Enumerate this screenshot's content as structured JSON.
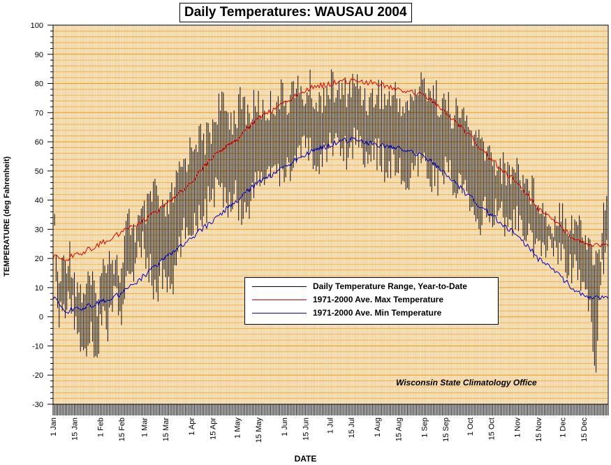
{
  "chart_data": {
    "type": "line",
    "title": "Daily Temperatures: WAUSAU 2004",
    "xlabel": "DATE",
    "ylabel": "TEMPERATURE (deg Fahrenheit)",
    "ylim": [
      -30,
      100
    ],
    "yticks": [
      -30,
      -20,
      -10,
      0,
      10,
      20,
      30,
      40,
      50,
      60,
      70,
      80,
      90,
      100
    ],
    "xlim_day_of_year": [
      1,
      366
    ],
    "x_tick_labels": [
      {
        "label": "1 Jan",
        "day": 1
      },
      {
        "label": "15 Jan",
        "day": 15
      },
      {
        "label": "1 Feb",
        "day": 32
      },
      {
        "label": "15 Feb",
        "day": 46
      },
      {
        "label": "1 Mar",
        "day": 61
      },
      {
        "label": "15 Mar",
        "day": 75
      },
      {
        "label": "1 Apr",
        "day": 92
      },
      {
        "label": "15 Apr",
        "day": 106
      },
      {
        "label": "1 May",
        "day": 122
      },
      {
        "label": "15 May",
        "day": 136
      },
      {
        "label": "1 Jun",
        "day": 153
      },
      {
        "label": "15 Jun",
        "day": 167
      },
      {
        "label": "1 Jul",
        "day": 183
      },
      {
        "label": "15 Jul",
        "day": 197
      },
      {
        "label": "1 Aug",
        "day": 214
      },
      {
        "label": "15 Aug",
        "day": 228
      },
      {
        "label": "1 Sep",
        "day": 245
      },
      {
        "label": "15 Sep",
        "day": 259
      },
      {
        "label": "1 Oct",
        "day": 275
      },
      {
        "label": "15 Oct",
        "day": 289
      },
      {
        "label": "1 Nov",
        "day": 306
      },
      {
        "label": "15 Nov",
        "day": 320
      },
      {
        "label": "1 Dec",
        "day": 336
      },
      {
        "label": "15 Dec",
        "day": 350
      }
    ],
    "grid": true,
    "legend_position": "center-right",
    "series": [
      {
        "name": "Daily Temperature Range, Year-to-Date",
        "kind": "range",
        "color": "#000000",
        "points": [
          {
            "day": 1,
            "low": 14,
            "high": 33
          },
          {
            "day": 2,
            "low": 22,
            "high": 35
          },
          {
            "day": 3,
            "low": 5,
            "high": 28
          },
          {
            "day": 4,
            "low": -5,
            "high": 20
          },
          {
            "day": 5,
            "low": -8,
            "high": 17
          },
          {
            "day": 8,
            "low": -2,
            "high": 25
          },
          {
            "day": 12,
            "low": 0,
            "high": 28
          },
          {
            "day": 16,
            "low": -8,
            "high": 18
          },
          {
            "day": 20,
            "low": -17,
            "high": 14
          },
          {
            "day": 25,
            "low": -12,
            "high": 18
          },
          {
            "day": 30,
            "low": -18,
            "high": 12
          },
          {
            "day": 33,
            "low": -5,
            "high": 20
          },
          {
            "day": 37,
            "low": -10,
            "high": 29
          },
          {
            "day": 42,
            "low": 5,
            "high": 25
          },
          {
            "day": 46,
            "low": -12,
            "high": 20
          },
          {
            "day": 50,
            "low": 10,
            "high": 39
          },
          {
            "day": 55,
            "low": 12,
            "high": 36
          },
          {
            "day": 60,
            "low": 18,
            "high": 40
          },
          {
            "day": 65,
            "low": 10,
            "high": 44
          },
          {
            "day": 68,
            "low": 2,
            "high": 52
          },
          {
            "day": 72,
            "low": 8,
            "high": 40
          },
          {
            "day": 76,
            "low": 5,
            "high": 42
          },
          {
            "day": 80,
            "low": 4,
            "high": 48
          },
          {
            "day": 85,
            "low": 20,
            "high": 56
          },
          {
            "day": 90,
            "low": 25,
            "high": 62
          },
          {
            "day": 95,
            "low": 28,
            "high": 68
          },
          {
            "day": 100,
            "low": 30,
            "high": 66
          },
          {
            "day": 105,
            "low": 35,
            "high": 70
          },
          {
            "day": 110,
            "low": 38,
            "high": 79
          },
          {
            "day": 115,
            "low": 32,
            "high": 76
          },
          {
            "day": 120,
            "low": 38,
            "high": 74
          },
          {
            "day": 125,
            "low": 29,
            "high": 80
          },
          {
            "day": 130,
            "low": 33,
            "high": 75
          },
          {
            "day": 135,
            "low": 40,
            "high": 80
          },
          {
            "day": 140,
            "low": 42,
            "high": 76
          },
          {
            "day": 145,
            "low": 45,
            "high": 79
          },
          {
            "day": 150,
            "low": 40,
            "high": 82
          },
          {
            "day": 155,
            "low": 45,
            "high": 80
          },
          {
            "day": 160,
            "low": 48,
            "high": 86
          },
          {
            "day": 165,
            "low": 50,
            "high": 80
          },
          {
            "day": 170,
            "low": 52,
            "high": 85
          },
          {
            "day": 175,
            "low": 44,
            "high": 78
          },
          {
            "day": 180,
            "low": 50,
            "high": 84
          },
          {
            "day": 185,
            "low": 55,
            "high": 85
          },
          {
            "day": 190,
            "low": 52,
            "high": 82
          },
          {
            "day": 195,
            "low": 50,
            "high": 84
          },
          {
            "day": 200,
            "low": 56,
            "high": 86
          },
          {
            "day": 205,
            "low": 52,
            "high": 82
          },
          {
            "day": 210,
            "low": 48,
            "high": 80
          },
          {
            "day": 215,
            "low": 50,
            "high": 84
          },
          {
            "day": 220,
            "low": 45,
            "high": 80
          },
          {
            "day": 225,
            "low": 48,
            "high": 82
          },
          {
            "day": 230,
            "low": 42,
            "high": 79
          },
          {
            "day": 235,
            "low": 39,
            "high": 78
          },
          {
            "day": 240,
            "low": 44,
            "high": 84
          },
          {
            "day": 245,
            "low": 46,
            "high": 86
          },
          {
            "day": 250,
            "low": 42,
            "high": 84
          },
          {
            "day": 255,
            "low": 40,
            "high": 80
          },
          {
            "day": 260,
            "low": 45,
            "high": 78
          },
          {
            "day": 265,
            "low": 40,
            "high": 75
          },
          {
            "day": 270,
            "low": 38,
            "high": 76
          },
          {
            "day": 275,
            "low": 32,
            "high": 70
          },
          {
            "day": 280,
            "low": 26,
            "high": 66
          },
          {
            "day": 285,
            "low": 30,
            "high": 64
          },
          {
            "day": 290,
            "low": 28,
            "high": 60
          },
          {
            "day": 295,
            "low": 30,
            "high": 58
          },
          {
            "day": 300,
            "low": 25,
            "high": 55
          },
          {
            "day": 305,
            "low": 28,
            "high": 58
          },
          {
            "day": 310,
            "low": 22,
            "high": 54
          },
          {
            "day": 315,
            "low": 20,
            "high": 50
          },
          {
            "day": 320,
            "low": 15,
            "high": 48
          },
          {
            "day": 325,
            "low": 18,
            "high": 40
          },
          {
            "day": 330,
            "low": 20,
            "high": 38
          },
          {
            "day": 335,
            "low": 15,
            "high": 44
          },
          {
            "day": 340,
            "low": 12,
            "high": 38
          },
          {
            "day": 345,
            "low": 10,
            "high": 39
          },
          {
            "day": 350,
            "low": 5,
            "high": 34
          },
          {
            "day": 355,
            "low": -8,
            "high": 30
          },
          {
            "day": 358,
            "low": -23,
            "high": 25
          },
          {
            "day": 361,
            "low": 8,
            "high": 29
          },
          {
            "day": 364,
            "low": 17,
            "high": 46
          },
          {
            "day": 366,
            "low": 25,
            "high": 40
          }
        ]
      },
      {
        "name": "1971-2000 Ave. Max Temperature",
        "kind": "line",
        "color": "#e00000",
        "x": [
          1,
          10,
          20,
          32,
          46,
          61,
          75,
          92,
          106,
          122,
          136,
          153,
          167,
          183,
          197,
          214,
          228,
          245,
          259,
          275,
          289,
          306,
          320,
          336,
          350,
          366
        ],
        "y": [
          21,
          20,
          22,
          25,
          29,
          33,
          38,
          46,
          55,
          61,
          68,
          73,
          78,
          80,
          81,
          80,
          78,
          76,
          70,
          62,
          54,
          46,
          37,
          30,
          25,
          24
        ]
      },
      {
        "name": "1971-2000 Ave. Min Temperature",
        "kind": "line",
        "color": "#0000cc",
        "x": [
          1,
          10,
          20,
          32,
          46,
          61,
          75,
          92,
          106,
          122,
          136,
          153,
          167,
          183,
          197,
          214,
          228,
          245,
          259,
          275,
          289,
          306,
          320,
          336,
          350,
          366
        ],
        "y": [
          7,
          2,
          3,
          5,
          8,
          14,
          20,
          27,
          33,
          40,
          46,
          51,
          56,
          59,
          61,
          59,
          58,
          55,
          49,
          41,
          35,
          28,
          20,
          13,
          7,
          6
        ]
      }
    ],
    "annotation": "Wisconsin State Climatology Office",
    "colors": {
      "plot_background": "#fbe8c4",
      "horizontal_grid": "#ff9900",
      "vertical_grid": "#d4a868",
      "axis": "#000000"
    }
  }
}
